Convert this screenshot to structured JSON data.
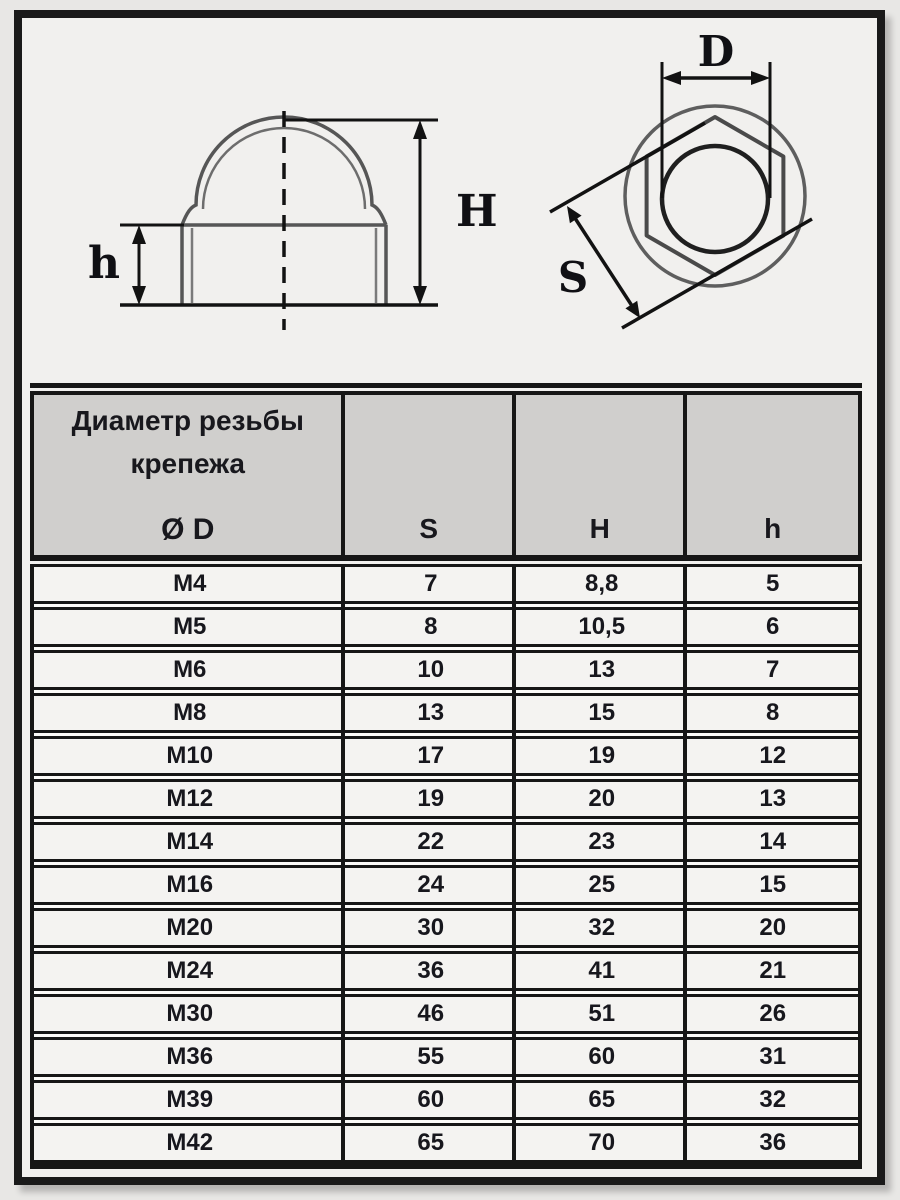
{
  "page": {
    "background": "#e8e7e5",
    "frame_color": "#1a1a1a",
    "paper_color": "#f1f0ee"
  },
  "drawing": {
    "side_view": {
      "label_total_height": "H",
      "label_base_height": "h"
    },
    "top_view": {
      "label_diameter": "D",
      "label_across_flats": "S"
    },
    "stroke_color": "#565656",
    "dimension_color": "#121212"
  },
  "table": {
    "header": {
      "thread_title_line1": "Диаметр резьбы",
      "thread_title_line2": "крепежа",
      "thread_symbol": "Ø D",
      "col_s": "S",
      "col_h": "H",
      "col_h_small": "h",
      "header_bg": "#d0cfcd",
      "row_bg": "#f4f3f1",
      "border_color": "#161616"
    },
    "rows": [
      {
        "thread": "M4",
        "s": "7",
        "h": "8,8",
        "hs": "5"
      },
      {
        "thread": "M5",
        "s": "8",
        "h": "10,5",
        "hs": "6"
      },
      {
        "thread": "M6",
        "s": "10",
        "h": "13",
        "hs": "7"
      },
      {
        "thread": "M8",
        "s": "13",
        "h": "15",
        "hs": "8"
      },
      {
        "thread": "M10",
        "s": "17",
        "h": "19",
        "hs": "12"
      },
      {
        "thread": "M12",
        "s": "19",
        "h": "20",
        "hs": "13"
      },
      {
        "thread": "M14",
        "s": "22",
        "h": "23",
        "hs": "14"
      },
      {
        "thread": "M16",
        "s": "24",
        "h": "25",
        "hs": "15"
      },
      {
        "thread": "M20",
        "s": "30",
        "h": "32",
        "hs": "20"
      },
      {
        "thread": "M24",
        "s": "36",
        "h": "41",
        "hs": "21"
      },
      {
        "thread": "M30",
        "s": "46",
        "h": "51",
        "hs": "26"
      },
      {
        "thread": "M36",
        "s": "55",
        "h": "60",
        "hs": "31"
      },
      {
        "thread": "M39",
        "s": "60",
        "h": "65",
        "hs": "32"
      },
      {
        "thread": "M42",
        "s": "65",
        "h": "70",
        "hs": "36"
      }
    ]
  }
}
